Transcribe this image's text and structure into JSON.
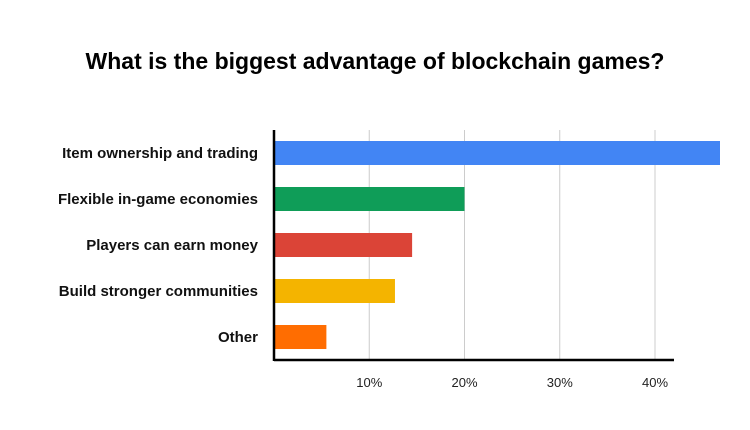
{
  "chart_data": {
    "type": "bar",
    "orientation": "horizontal",
    "title": "What is the biggest advantage of blockchain games?",
    "categories": [
      "Item ownership and trading",
      "Flexible in-game economies",
      "Players can earn money",
      "Build stronger communities",
      "Other"
    ],
    "values": [
      47,
      20,
      14.5,
      12.7,
      5.5
    ],
    "colors": [
      "#4285F4",
      "#0F9D58",
      "#DB4437",
      "#F4B400",
      "#FF6D01"
    ],
    "xlim": [
      0,
      42
    ],
    "xticks": [
      10,
      20,
      30,
      40
    ],
    "xtick_labels": [
      "10%",
      "20%",
      "30%",
      "40%"
    ],
    "xlabel": "",
    "ylabel": "",
    "grid": true
  }
}
